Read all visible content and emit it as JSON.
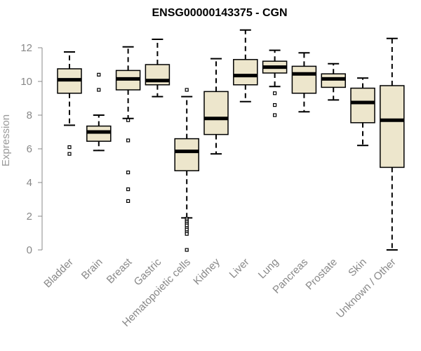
{
  "chart_data": {
    "type": "boxplot",
    "title": "ENSG00000143375 - CGN",
    "xlabel": "",
    "ylabel": "Expression",
    "ylim": [
      0,
      12.8
    ],
    "yticks": [
      "0",
      "2",
      "4",
      "6",
      "8",
      "10",
      "12"
    ],
    "ytick_values": [
      0,
      2,
      4,
      6,
      8,
      10,
      12
    ],
    "grid": false,
    "colors": {
      "box_fill": "#ede6cc",
      "stroke": "#000000",
      "axis": "#888888"
    },
    "categories": [
      "Bladder",
      "Brain",
      "Breast",
      "Gastric",
      "Hematopoietic cells",
      "Kidney",
      "Liver",
      "Lung",
      "Pancreas",
      "Prostate",
      "Skin",
      "Unknown / Other"
    ],
    "boxes": [
      {
        "name": "Bladder",
        "whisker_low": 7.4,
        "q1": 9.3,
        "median": 10.1,
        "q3": 10.75,
        "whisker_high": 11.75,
        "outliers": [
          6.1,
          5.7
        ]
      },
      {
        "name": "Brain",
        "whisker_low": 5.9,
        "q1": 6.45,
        "median": 7.0,
        "q3": 7.35,
        "whisker_high": 8.0,
        "outliers": [
          10.4,
          9.5
        ]
      },
      {
        "name": "Breast",
        "whisker_low": 7.8,
        "q1": 9.5,
        "median": 10.15,
        "q3": 10.65,
        "whisker_high": 12.05,
        "outliers": [
          7.7,
          6.5,
          4.6,
          3.6,
          2.9
        ]
      },
      {
        "name": "Gastric",
        "whisker_low": 9.1,
        "q1": 9.8,
        "median": 10.05,
        "q3": 11.0,
        "whisker_high": 12.5,
        "outliers": []
      },
      {
        "name": "Hematopoietic cells",
        "whisker_low": 1.9,
        "q1": 4.7,
        "median": 5.85,
        "q3": 6.6,
        "whisker_high": 9.1,
        "outliers": [
          9.5,
          1.85,
          1.75,
          1.65,
          1.55,
          1.45,
          1.3,
          1.2,
          1.05,
          0.95,
          0.0
        ]
      },
      {
        "name": "Kidney",
        "whisker_low": 5.7,
        "q1": 6.85,
        "median": 7.8,
        "q3": 9.4,
        "whisker_high": 11.35,
        "outliers": []
      },
      {
        "name": "Liver",
        "whisker_low": 8.8,
        "q1": 9.8,
        "median": 10.35,
        "q3": 11.3,
        "whisker_high": 13.05,
        "outliers": []
      },
      {
        "name": "Lung",
        "whisker_low": 9.7,
        "q1": 10.5,
        "median": 10.85,
        "q3": 11.2,
        "whisker_high": 11.85,
        "outliers": [
          9.3,
          8.6,
          8.0
        ]
      },
      {
        "name": "Pancreas",
        "whisker_low": 8.2,
        "q1": 9.3,
        "median": 10.45,
        "q3": 10.9,
        "whisker_high": 11.7,
        "outliers": []
      },
      {
        "name": "Prostate",
        "whisker_low": 8.9,
        "q1": 9.65,
        "median": 10.15,
        "q3": 10.45,
        "whisker_high": 11.05,
        "outliers": []
      },
      {
        "name": "Skin",
        "whisker_low": 6.2,
        "q1": 7.55,
        "median": 8.75,
        "q3": 9.6,
        "whisker_high": 10.2,
        "outliers": []
      },
      {
        "name": "Unknown / Other",
        "whisker_low": 0.0,
        "q1": 4.9,
        "median": 7.7,
        "q3": 9.75,
        "whisker_high": 12.55,
        "outliers": []
      }
    ]
  }
}
